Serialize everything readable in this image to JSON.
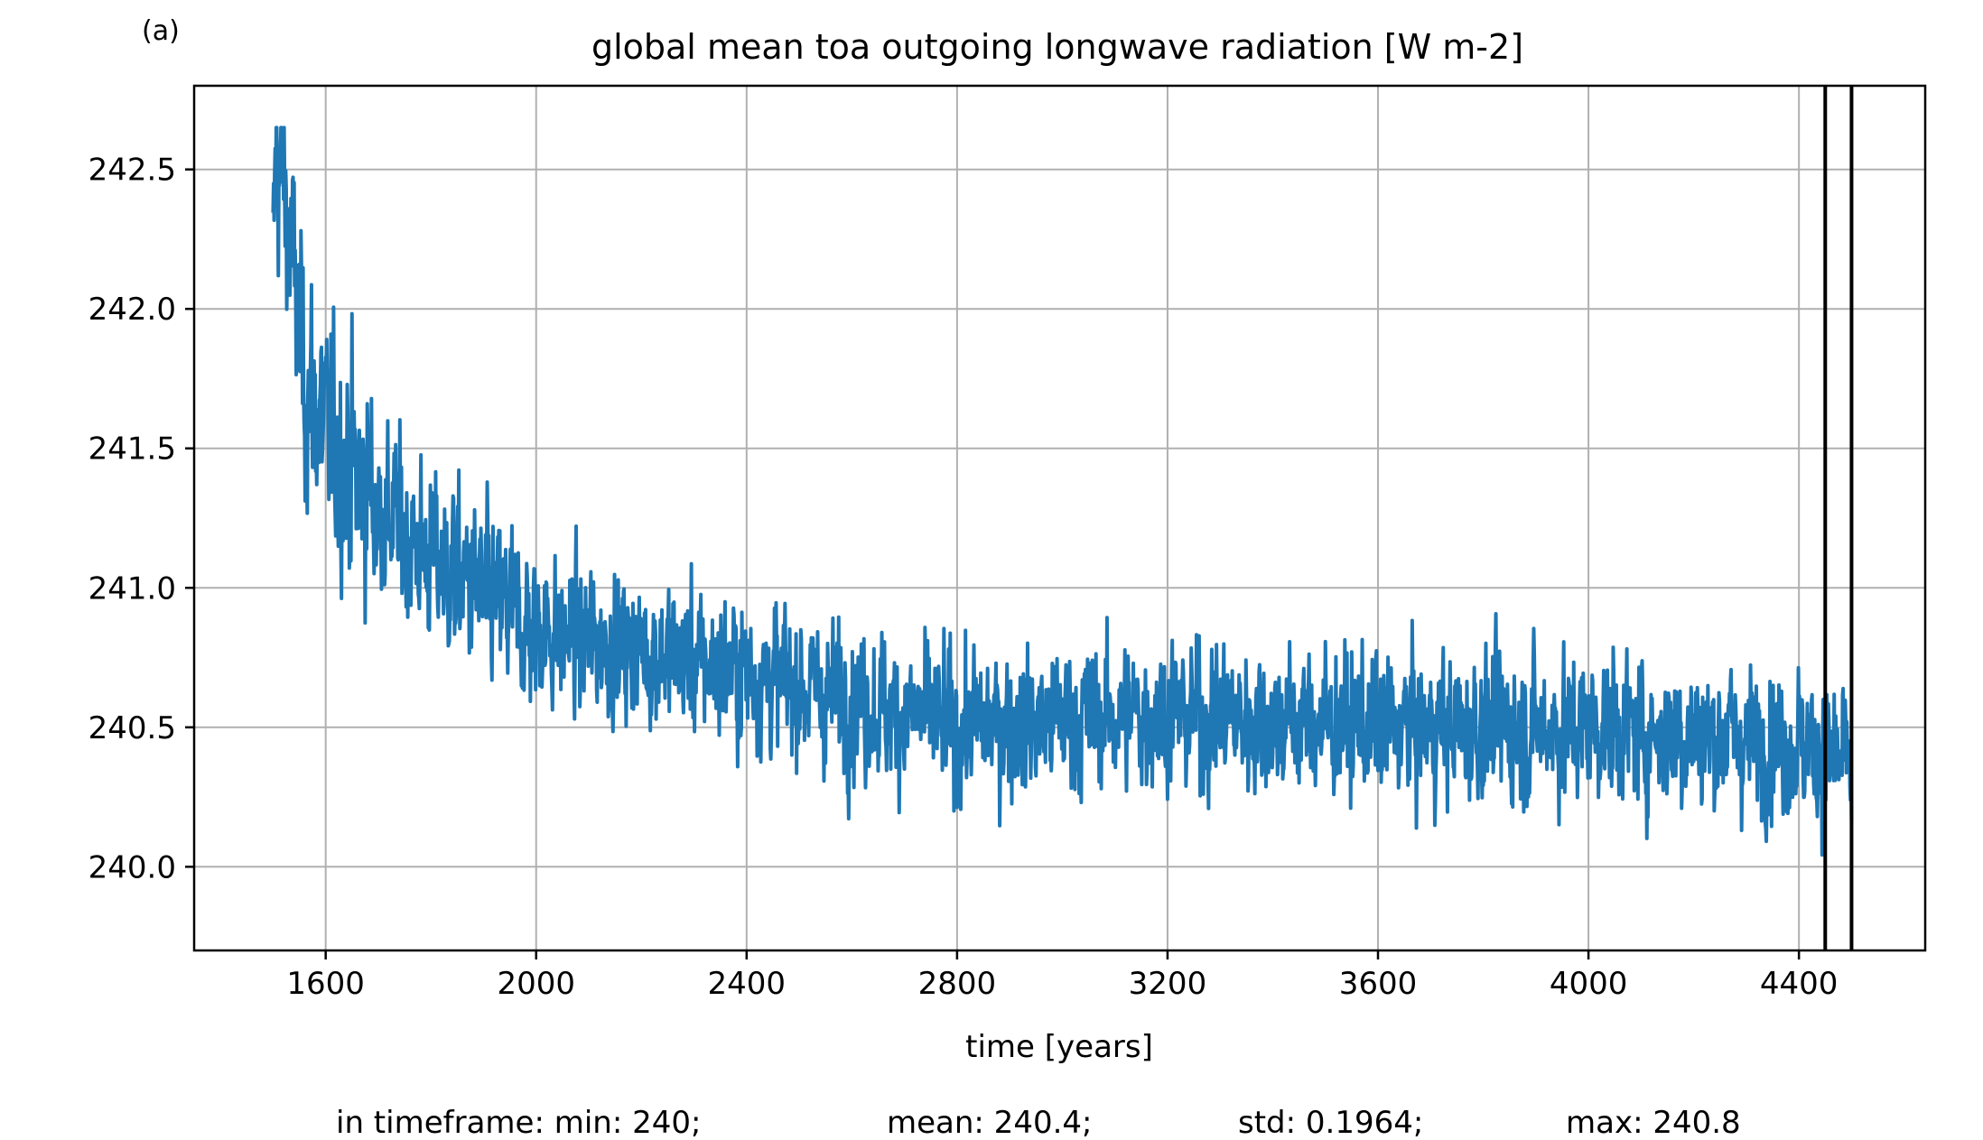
{
  "chart_data": {
    "type": "line",
    "panel_label": "(a)",
    "title": "global mean toa outgoing longwave radiation [W m-2]",
    "xlabel": "time [years]",
    "ylabel": "",
    "xlim": [
      1350,
      4640
    ],
    "ylim": [
      239.7,
      242.8
    ],
    "xticks": [
      1600,
      2000,
      2400,
      2800,
      3200,
      3600,
      4000,
      4400
    ],
    "xtick_labels": [
      "1600",
      "2000",
      "2400",
      "2800",
      "3200",
      "3600",
      "4000",
      "4400"
    ],
    "yticks": [
      240.0,
      240.5,
      241.0,
      241.5,
      242.0,
      242.5
    ],
    "ytick_labels": [
      "240.0",
      "240.5",
      "241.0",
      "241.5",
      "242.0",
      "242.5"
    ],
    "grid": true,
    "series": [
      {
        "color": "#1f77b4",
        "x_range": [
          1500,
          4500
        ],
        "trend_points": [
          [
            1500,
            242.1
          ],
          [
            1505,
            242.55
          ],
          [
            1520,
            242.45
          ],
          [
            1540,
            242.1
          ],
          [
            1560,
            241.75
          ],
          [
            1600,
            241.55
          ],
          [
            1700,
            241.3
          ],
          [
            1800,
            241.1
          ],
          [
            2000,
            240.85
          ],
          [
            2400,
            240.7
          ],
          [
            2800,
            240.5
          ],
          [
            3200,
            240.55
          ],
          [
            3600,
            240.5
          ],
          [
            4000,
            240.5
          ],
          [
            4400,
            240.45
          ],
          [
            4500,
            240.35
          ]
        ],
        "approx_stats": {
          "min": 239.83,
          "max": 242.65
        }
      }
    ],
    "vlines": [
      4450,
      4500
    ],
    "vline_color": "#000000",
    "stats_labels": [
      "in timeframe: min: 240;",
      "mean: 240.4;",
      "std: 0.1964;",
      "max: 240.8"
    ]
  }
}
